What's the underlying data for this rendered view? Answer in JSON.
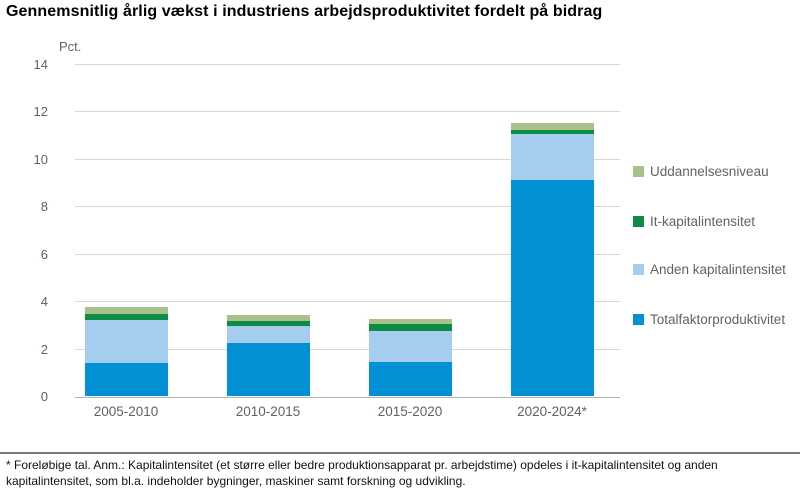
{
  "title": "Gennemsnitlig årlig vækst i industriens arbejdsproduktivitet fordelt på bidrag",
  "chart_data": {
    "type": "bar",
    "stacked": true,
    "title": "Gennemsnitlig årlig vækst i industriens arbejdsproduktivitet fordelt på bidrag",
    "unit_label": "Pct.",
    "categories": [
      "2005-2010",
      "2010-2015",
      "2015-2020",
      "2020-2024*"
    ],
    "series": [
      {
        "name": "Totalfaktorproduktivitet",
        "color": "#0191d4",
        "values": [
          1.4,
          2.25,
          1.45,
          9.1
        ]
      },
      {
        "name": "Anden kapitalintensitet",
        "color": "#a4cdf0",
        "values": [
          1.8,
          0.7,
          1.3,
          1.95
        ]
      },
      {
        "name": "It-kapitalintensitet",
        "color": "#0e8c45",
        "values": [
          0.25,
          0.2,
          0.3,
          0.15
        ]
      },
      {
        "name": "Uddannelsesniveau",
        "color": "#a8c18c",
        "values": [
          0.3,
          0.25,
          0.2,
          0.3
        ]
      }
    ],
    "totals": [
      3.75,
      3.4,
      3.25,
      11.5
    ],
    "ylim": [
      0,
      14
    ],
    "ytick_step": 2,
    "yticks": [
      0,
      2,
      4,
      6,
      8,
      10,
      12,
      14
    ],
    "grid": true,
    "legend_position": "right",
    "legend_order": [
      "Uddannelsesniveau",
      "It-kapitalintensitet",
      "Anden kapitalintensitet",
      "Totalfaktorproduktivitet"
    ],
    "xlabel": "",
    "ylabel": "Pct."
  },
  "colors": {
    "gridline": "#d9d9d3",
    "zero_line": "#b3b3ab",
    "axis_text": "#63635b",
    "divider": "#6f7d7d",
    "title_text": "#000000",
    "footnote_text": "#111111"
  },
  "footnote": "* Foreløbige tal. Anm.: Kapitalintensitet (et større eller bedre produktionsapparat pr. arbejdstime) opdeles i it-kapitalintensitet og anden kapitalintensitet, som bl.a. indeholder bygninger, maskiner samt forskning og udvikling."
}
